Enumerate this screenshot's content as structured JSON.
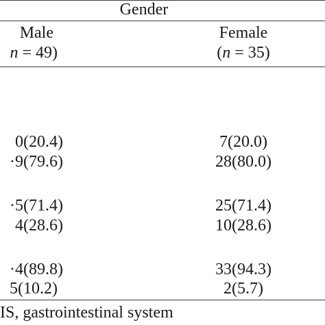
{
  "header": {
    "group_label": "Gender",
    "columns": [
      {
        "label": "Male",
        "n_label": "n = 49)",
        "n_italic": "n",
        "n_rest": " = 49)"
      },
      {
        "label": "Female",
        "n_label": "(n = 35)",
        "n_open": "(",
        "n_italic": "n",
        "n_rest": " = 35)"
      }
    ]
  },
  "rows": [
    {
      "male": "0(20.4)",
      "female": "7(20.0)"
    },
    {
      "male": "·9(79.6)",
      "female": "28(80.0)"
    },
    {
      "male": "·5(71.4)",
      "female": "25(71.4)"
    },
    {
      "male": "4(28.6)",
      "female": "10(28.6)"
    },
    {
      "male": "·4(89.8)",
      "female": "33(94.3)"
    },
    {
      "male": "5(10.2)",
      "female": "2(5.7)"
    }
  ],
  "footnote": "IS, gastrointestinal system"
}
